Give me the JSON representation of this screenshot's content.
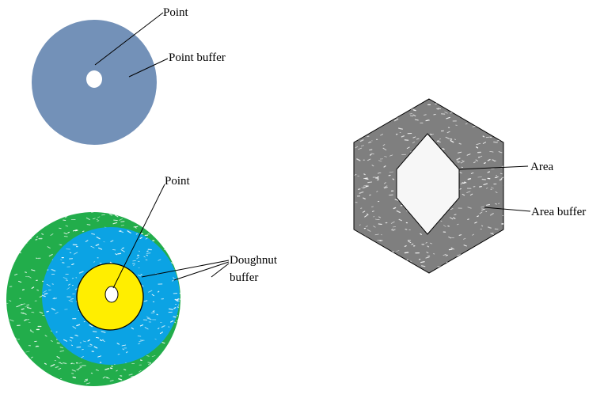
{
  "colors": {
    "point_buffer": "#7391b8",
    "ring_green": "#22ad4b",
    "ring_blue": "#0ba3e4",
    "ring_yellow": "#ffee00",
    "area_buffer": "#7f7f7f",
    "area_inner": "#f7f7f7",
    "point": "#ffffff",
    "speckle": "#ffffff",
    "outline": "#000000"
  },
  "labels": {
    "point_buffer_example": {
      "point": "Point",
      "point_buffer": "Point buffer"
    },
    "doughnut_buffer_example": {
      "point": "Point",
      "doughnut_line1": "Doughnut",
      "doughnut_line2": "buffer"
    },
    "area_buffer_example": {
      "area": "Area",
      "area_buffer": "Area buffer"
    }
  }
}
